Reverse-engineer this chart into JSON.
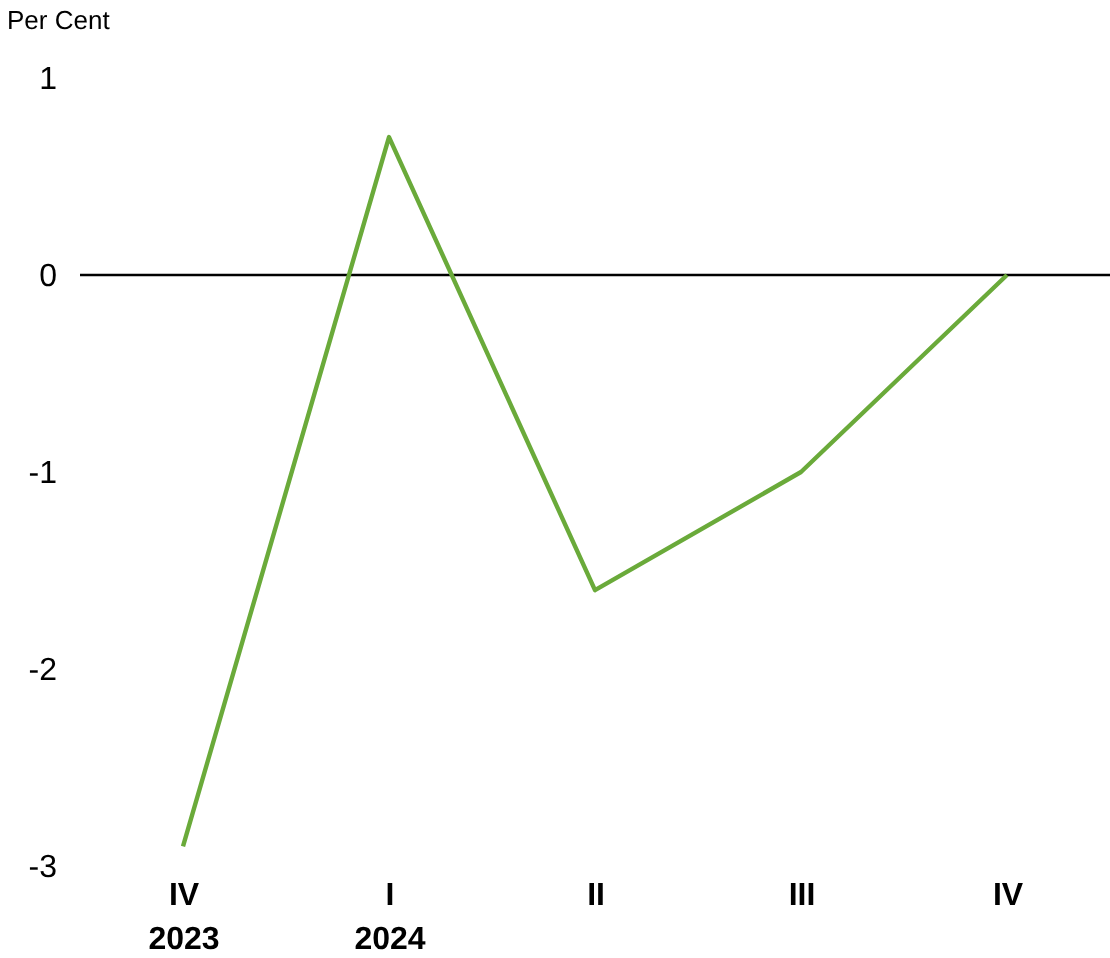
{
  "chart_data": {
    "type": "line",
    "ylabel": "Per Cent",
    "categories": [
      "IV\n2023",
      "I\n2024",
      "II",
      "III",
      "IV"
    ],
    "series": [
      {
        "color": "#6aaa3a",
        "values": [
          -2.9,
          0.7,
          -1.6,
          -1.0,
          0.0
        ]
      }
    ],
    "ylim": [
      -3,
      1
    ],
    "yticks": [
      -3,
      -2,
      -1,
      0,
      1
    ],
    "ref_lines": [
      {
        "axis": "y",
        "value": 0,
        "color": "#000000"
      }
    ],
    "grid": false,
    "marker": "none",
    "line_style": "solid"
  }
}
